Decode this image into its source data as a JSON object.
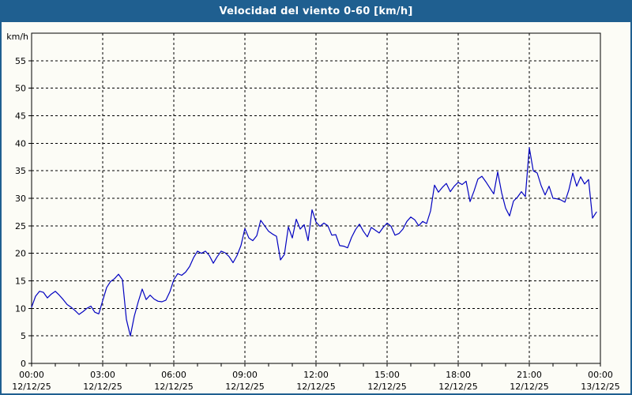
{
  "window": {
    "title": "Velocidad del viento 0-60 [km/h]"
  },
  "colors": {
    "banner_blue": "#1f5f90",
    "background": "#fcfcf6",
    "line_blue": "#0202c0",
    "grid_color": "#000000"
  },
  "chart_data": {
    "type": "line",
    "title": "Velocidad del viento 0-60 [km/h]",
    "unit_label": "km/h",
    "xlabel": "",
    "ylabel": "km/h",
    "ylim": [
      0,
      60
    ],
    "grid": "dashed",
    "legend_position": "none",
    "y_ticks": [
      0,
      5,
      10,
      15,
      20,
      25,
      30,
      35,
      40,
      45,
      50,
      55
    ],
    "x_tick_hours": [
      0,
      3,
      6,
      9,
      12,
      15,
      18,
      21,
      24
    ],
    "x_ticks": [
      {
        "time": "00:00",
        "date": "12/12/25"
      },
      {
        "time": "03:00",
        "date": "12/12/25"
      },
      {
        "time": "06:00",
        "date": "12/12/25"
      },
      {
        "time": "09:00",
        "date": "12/12/25"
      },
      {
        "time": "12:00",
        "date": "12/12/25"
      },
      {
        "time": "15:00",
        "date": "12/12/25"
      },
      {
        "time": "18:00",
        "date": "12/12/25"
      },
      {
        "time": "21:00",
        "date": "12/12/25"
      },
      {
        "time": "00:00",
        "date": "13/12/25"
      }
    ],
    "minor_tick_every_hours": 1,
    "start_time": "00:00",
    "sample_interval_minutes": 10,
    "series": [
      {
        "name": "Velocidad del viento",
        "color": "#0202c0",
        "values": [
          10.2,
          12.2,
          13.1,
          12.9,
          11.9,
          12.6,
          13.1,
          12.4,
          11.6,
          10.7,
          10.2,
          9.6,
          8.9,
          9.4,
          10.0,
          10.4,
          9.3,
          9.0,
          11.4,
          13.8,
          14.9,
          15.4,
          16.2,
          15.2,
          8.0,
          5.0,
          8.6,
          11.2,
          13.5,
          11.6,
          12.4,
          11.7,
          11.3,
          11.2,
          11.5,
          13.0,
          15.2,
          16.3,
          16.0,
          16.6,
          17.6,
          19.2,
          20.4,
          20.0,
          20.4,
          19.6,
          18.2,
          19.4,
          20.4,
          20.1,
          19.4,
          18.3,
          19.6,
          21.4,
          24.5,
          22.8,
          22.3,
          23.2,
          26.0,
          25.0,
          24.0,
          23.5,
          23.1,
          18.8,
          19.8,
          24.8,
          22.8,
          26.2,
          24.4,
          25.2,
          22.3,
          27.9,
          25.7,
          24.9,
          25.5,
          25.0,
          23.3,
          23.4,
          21.4,
          21.3,
          21.0,
          22.9,
          24.3,
          25.3,
          24.0,
          23.0,
          24.7,
          24.2,
          23.7,
          24.7,
          25.5,
          24.9,
          23.3,
          23.6,
          24.4,
          25.8,
          26.6,
          26.1,
          25.0,
          25.8,
          25.4,
          27.7,
          32.4,
          31.1,
          32.0,
          32.7,
          31.2,
          32.2,
          32.9,
          32.5,
          33.1,
          29.4,
          31.3,
          33.5,
          34.0,
          33.0,
          31.9,
          30.8,
          34.8,
          31.0,
          28.2,
          26.8,
          29.5,
          30.2,
          31.2,
          30.3,
          39.2,
          35.0,
          34.6,
          32.3,
          30.6,
          32.2,
          30.0,
          29.9,
          29.7,
          29.3,
          31.5,
          34.6,
          32.2,
          33.9,
          32.6,
          33.4,
          26.4,
          27.5
        ]
      }
    ]
  }
}
